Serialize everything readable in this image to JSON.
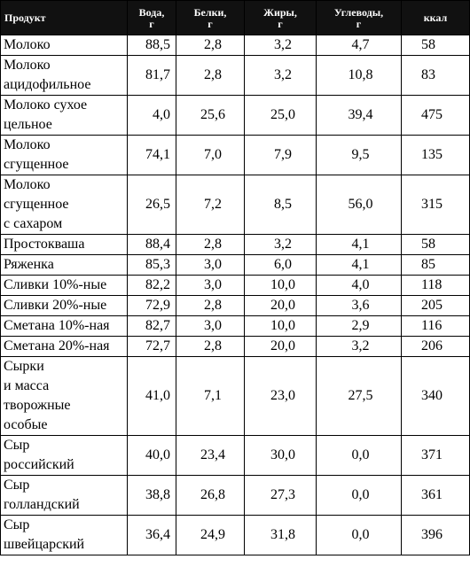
{
  "table": {
    "headers": [
      "Продукт",
      "Вода, г",
      "Белки, г",
      "Жиры, г",
      "Углеводы, г",
      "ккал"
    ],
    "rows": [
      {
        "name": "Молоко",
        "water": "88,5",
        "protein": "2,8",
        "fat": "3,2",
        "carbs": "4,7",
        "kcal": "58"
      },
      {
        "name": "Молоко\nацидофильное",
        "water": "81,7",
        "protein": "2,8",
        "fat": "3,2",
        "carbs": "10,8",
        "kcal": "83"
      },
      {
        "name": "Молоко сухое\nцельное",
        "water": "4,0",
        "protein": "25,6",
        "fat": "25,0",
        "carbs": "39,4",
        "kcal": "475"
      },
      {
        "name": "Молоко\nсгущенное",
        "water": "74,1",
        "protein": "7,0",
        "fat": "7,9",
        "carbs": "9,5",
        "kcal": "135"
      },
      {
        "name": "Молоко\nсгущенное\nс сахаром",
        "water": "26,5",
        "protein": "7,2",
        "fat": "8,5",
        "carbs": "56,0",
        "kcal": "315"
      },
      {
        "name": "Простокваша",
        "water": "88,4",
        "protein": "2,8",
        "fat": "3,2",
        "carbs": "4,1",
        "kcal": "58"
      },
      {
        "name": "Ряженка",
        "water": "85,3",
        "protein": "3,0",
        "fat": "6,0",
        "carbs": "4,1",
        "kcal": "85"
      },
      {
        "name": "Сливки 10%-ные",
        "water": "82,2",
        "protein": "3,0",
        "fat": "10,0",
        "carbs": "4,0",
        "kcal": "118"
      },
      {
        "name": "Сливки 20%-ные",
        "water": "72,9",
        "protein": "2,8",
        "fat": "20,0",
        "carbs": "3,6",
        "kcal": "205"
      },
      {
        "name": "Сметана 10%-ная",
        "water": "82,7",
        "protein": "3,0",
        "fat": "10,0",
        "carbs": "2,9",
        "kcal": "116"
      },
      {
        "name": "Сметана 20%-ная",
        "water": "72,7",
        "protein": "2,8",
        "fat": "20,0",
        "carbs": "3,2",
        "kcal": "206"
      },
      {
        "name": "Сырки\nи масса\nтворожные\nособые",
        "water": "41,0",
        "protein": "7,1",
        "fat": "23,0",
        "carbs": "27,5",
        "kcal": "340"
      },
      {
        "name": "Сыр\nроссийский",
        "water": "40,0",
        "protein": "23,4",
        "fat": "30,0",
        "carbs": "0,0",
        "kcal": "371"
      },
      {
        "name": "Сыр\nголландский",
        "water": "38,8",
        "protein": "26,8",
        "fat": "27,3",
        "carbs": "0,0",
        "kcal": "361"
      },
      {
        "name": "Сыр\nшвейцарский",
        "water": "36,4",
        "protein": "24,9",
        "fat": "31,8",
        "carbs": "0,0",
        "kcal": "396"
      }
    ]
  }
}
